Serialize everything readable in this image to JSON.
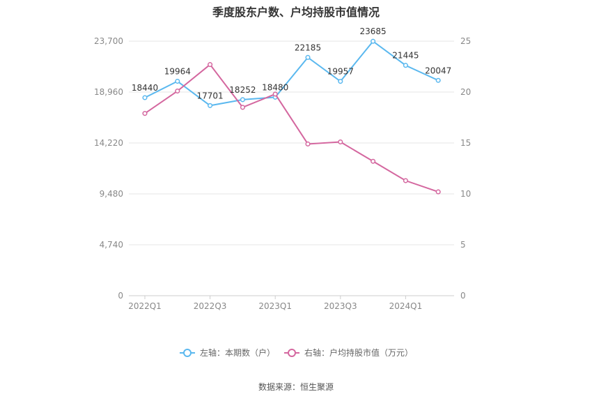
{
  "chart_data": {
    "type": "line",
    "title": "季度股东户数、户均持股市值情况",
    "categories": [
      "2022Q1",
      "2022Q2",
      "2022Q3",
      "2022Q4",
      "2023Q1",
      "2023Q2",
      "2023Q3",
      "2023Q4",
      "2024Q1",
      "2024Q2"
    ],
    "x_tick_labels": [
      "2022Q1",
      "2022Q3",
      "2023Q1",
      "2023Q3",
      "2024Q1"
    ],
    "series": [
      {
        "name": "左轴：本期数（户）",
        "axis": "left",
        "color": "#5ab8ef",
        "values": [
          18440,
          19964,
          17701,
          18252,
          18480,
          22185,
          19957,
          23685,
          21445,
          20047
        ]
      },
      {
        "name": "右轴：户均持股市值（万元）",
        "axis": "right",
        "color": "#d4679f",
        "values": [
          17.9,
          20.1,
          22.7,
          18.5,
          19.8,
          14.9,
          15.1,
          13.2,
          11.3,
          10.2
        ]
      }
    ],
    "left_axis": {
      "ylim": [
        0,
        23700
      ],
      "ticks": [
        "0",
        "4,740",
        "9,480",
        "14,220",
        "18,960",
        "23,700"
      ]
    },
    "right_axis": {
      "ylim": [
        0,
        25
      ],
      "ticks": [
        "0",
        "5",
        "10",
        "15",
        "20",
        "25"
      ]
    },
    "grid": true,
    "legend_position": "bottom"
  },
  "footer": {
    "source": "数据来源：恒生聚源"
  }
}
